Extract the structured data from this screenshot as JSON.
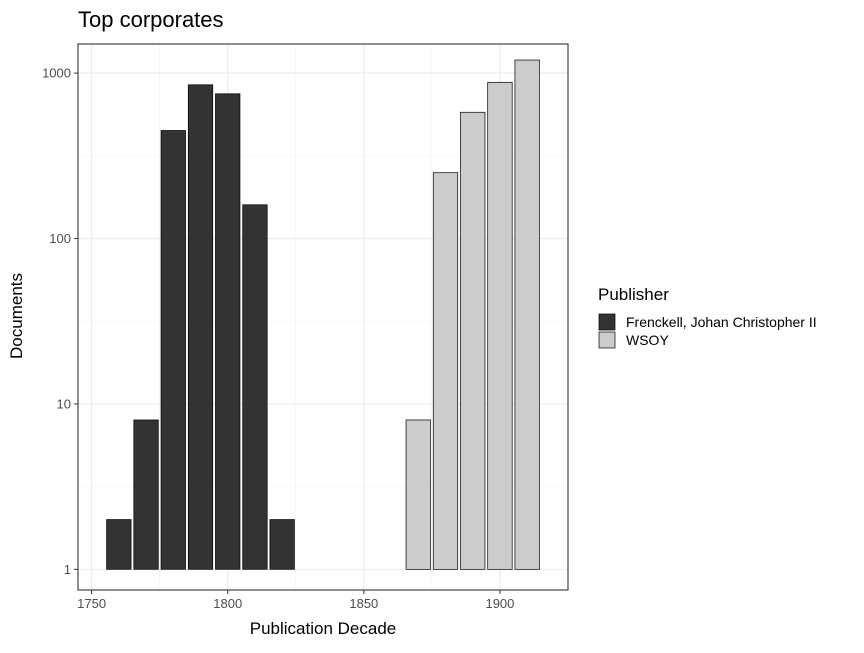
{
  "chart_data": {
    "type": "bar",
    "title": "Top corporates",
    "xlabel": "Publication Decade",
    "ylabel": "Documents",
    "y_scale": "log10",
    "xlim": [
      1745,
      1925
    ],
    "ylim": [
      0.75,
      1500
    ],
    "x_ticks": [
      1750,
      1800,
      1850,
      1900
    ],
    "y_ticks": [
      1,
      10,
      100,
      1000
    ],
    "y_tick_labels": [
      "1",
      "10",
      "100",
      "1000"
    ],
    "grid": true,
    "legend": {
      "title": "Publisher",
      "position": "right"
    },
    "series": [
      {
        "name": "Frenckell, Johan Christopher II",
        "color": "#333333",
        "points": [
          {
            "x": 1760,
            "y": 2
          },
          {
            "x": 1770,
            "y": 8
          },
          {
            "x": 1780,
            "y": 450
          },
          {
            "x": 1790,
            "y": 850
          },
          {
            "x": 1800,
            "y": 750
          },
          {
            "x": 1810,
            "y": 160
          },
          {
            "x": 1820,
            "y": 2
          }
        ]
      },
      {
        "name": "WSOY",
        "color": "#cccccc",
        "points": [
          {
            "x": 1870,
            "y": 8
          },
          {
            "x": 1880,
            "y": 250
          },
          {
            "x": 1890,
            "y": 580
          },
          {
            "x": 1900,
            "y": 880
          },
          {
            "x": 1910,
            "y": 1200
          }
        ]
      }
    ]
  }
}
